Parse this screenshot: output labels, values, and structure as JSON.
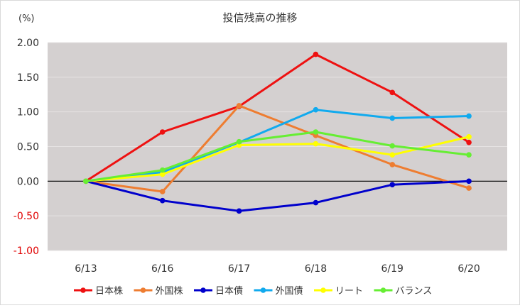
{
  "chart_data": {
    "type": "line",
    "title": "投信残高の推移",
    "y_unit_label": "(%)",
    "categories": [
      "6/13",
      "6/16",
      "6/17",
      "6/18",
      "6/19",
      "6/20"
    ],
    "ylim": [
      -1.0,
      2.0
    ],
    "yticks": [
      "2.00",
      "1.50",
      "1.00",
      "0.50",
      "0.00",
      "-0.50",
      "-1.00"
    ],
    "ytick_values": [
      2.0,
      1.5,
      1.0,
      0.5,
      0.0,
      -0.5,
      -1.0
    ],
    "negative_tick_color": "#e00000",
    "plot_background": "#d4d0d0",
    "grid": true,
    "legend_position": "bottom",
    "series": [
      {
        "name": "日本株",
        "color": "#ee1111",
        "values": [
          0.0,
          0.71,
          1.08,
          1.83,
          1.28,
          0.56
        ]
      },
      {
        "name": "外国株",
        "color": "#ee7d31",
        "values": [
          0.0,
          -0.15,
          1.09,
          0.66,
          0.24,
          -0.1
        ]
      },
      {
        "name": "日本債",
        "color": "#0000cc",
        "values": [
          0.0,
          -0.28,
          -0.43,
          -0.31,
          -0.05,
          0.0
        ]
      },
      {
        "name": "外国債",
        "color": "#11aaee",
        "values": [
          0.0,
          0.13,
          0.56,
          1.03,
          0.91,
          0.94
        ]
      },
      {
        "name": "リート",
        "color": "#ffff00",
        "values": [
          0.0,
          0.1,
          0.52,
          0.54,
          0.38,
          0.64
        ]
      },
      {
        "name": "バランス",
        "color": "#66ee33",
        "values": [
          0.0,
          0.16,
          0.57,
          0.71,
          0.51,
          0.38
        ]
      }
    ]
  }
}
